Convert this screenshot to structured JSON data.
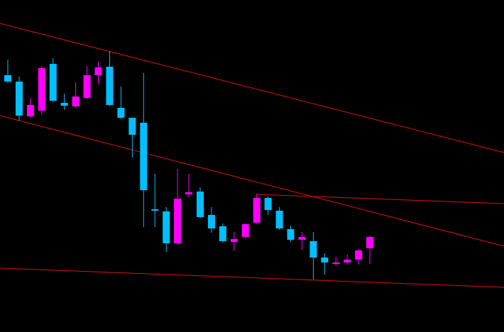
{
  "chart_data": {
    "type": "candlestick",
    "up_color": "#ff00ff",
    "down_color": "#00bfff",
    "ylim": [
      0,
      468
    ],
    "open": [
      362,
      353,
      304,
      312,
      378,
      323,
      318,
      330,
      362,
      374,
      316,
      302,
      295,
      173,
      170,
      125,
      194,
      198,
      165,
      149,
      127,
      134,
      154,
      189,
      171,
      145,
      130,
      128,
      105,
      96,
      98,
      102,
      118
    ],
    "high": [
      384,
      360,
      330,
      375,
      386,
      336,
      352,
      375,
      381,
      396,
      346,
      302,
      365,
      223,
      176,
      230,
      223,
      204,
      176,
      153,
      141,
      153,
      195,
      191,
      176,
      150,
      141,
      141,
      111,
      106,
      109,
      117,
      136
    ],
    "low": [
      351,
      298,
      302,
      306,
      324,
      313,
      316,
      328,
      350,
      319,
      300,
      246,
      148,
      148,
      113,
      123,
      190,
      160,
      140,
      126,
      114,
      132,
      152,
      165,
      144,
      127,
      116,
      74,
      81,
      93,
      95,
      95,
      96
    ],
    "close": [
      353,
      305,
      320,
      372,
      326,
      319,
      332,
      362,
      373,
      320,
      302,
      278,
      200,
      171,
      125,
      188,
      197,
      162,
      146,
      128,
      131,
      152,
      189,
      172,
      146,
      130,
      134,
      105,
      98,
      98,
      102,
      115,
      134
    ]
  }
}
